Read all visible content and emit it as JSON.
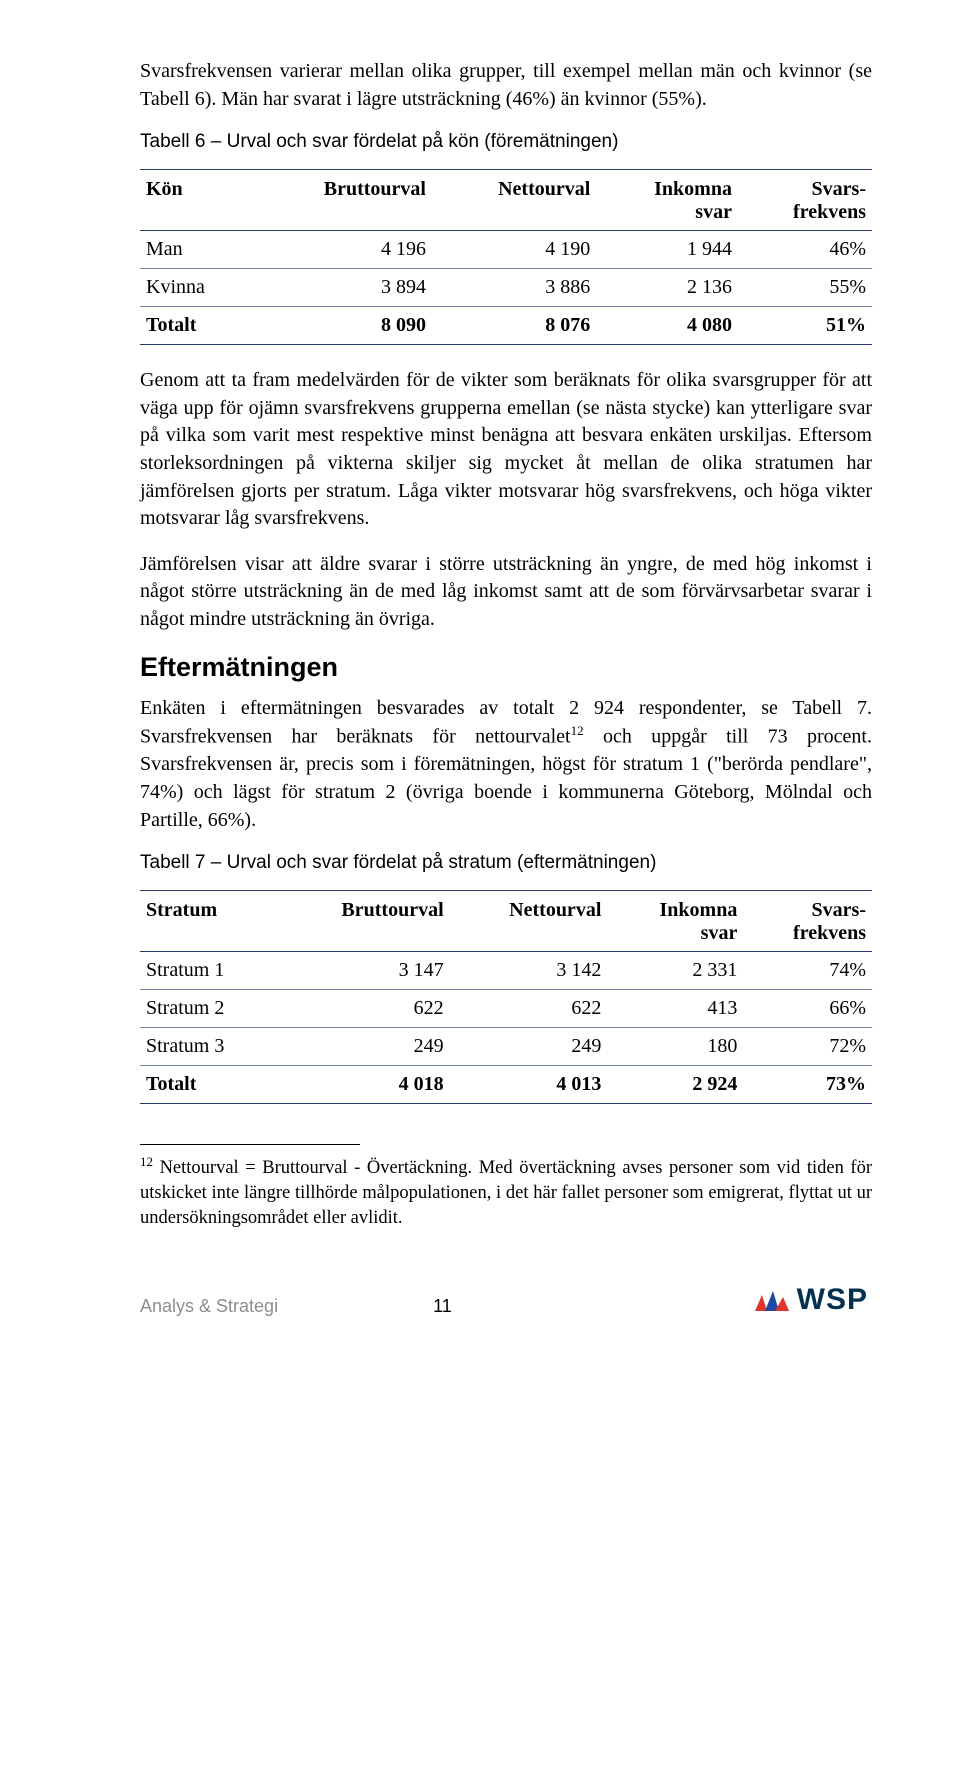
{
  "para1": "Svarsfrekvensen varierar mellan olika grupper, till exempel mellan män och kvinnor (se Tabell 6). Män har svarat i lägre utsträckning (46%) än kvinnor (55%).",
  "table6": {
    "caption": "Tabell 6 – Urval och svar fördelat på kön (föremätningen)",
    "headers": [
      "Kön",
      "Bruttourval",
      "Nettourval",
      "Inkomna svar",
      "Svars-frekvens"
    ],
    "rows": [
      [
        "Man",
        "4 196",
        "4 190",
        "1 944",
        "46%"
      ],
      [
        "Kvinna",
        "3 894",
        "3 886",
        "2 136",
        "55%"
      ]
    ],
    "total": [
      "Totalt",
      "8 090",
      "8 076",
      "4 080",
      "51%"
    ]
  },
  "para2": "Genom att ta fram medelvärden för de vikter som beräknats för olika svarsgrupper för att väga upp för ojämn svarsfrekvens grupperna emellan (se nästa stycke) kan ytterligare svar på vilka som varit mest respektive minst benägna att besvara enkäten urskiljas. Eftersom storleksordningen på vikterna skiljer sig mycket åt mellan de olika stratumen har jämförelsen gjorts per stratum. Låga vikter motsvarar hög svarsfrekvens, och höga vikter motsvarar låg svarsfrekvens.",
  "para3": "Jämförelsen visar att äldre svarar i större utsträckning än yngre, de med hög inkomst i något större utsträckning än de med låg inkomst samt att de som förvärvsarbetar svarar i något mindre utsträckning än övriga.",
  "heading": "Eftermätningen",
  "para4a": "Enkäten i eftermätningen besvarades av totalt 2 924 respondenter, se Tabell 7. Svarsfrekvensen har beräknats för nettourvalet",
  "para4sup": "12",
  "para4b": " och uppgår till 73 procent. Svarsfrekvensen är, precis som i föremätningen, högst för stratum 1 (\"berörda pendlare\", 74%) och lägst för stratum 2 (övriga boende i kommunerna Göteborg, Mölndal och Partille, 66%).",
  "table7": {
    "caption": "Tabell 7 – Urval och svar fördelat på stratum (eftermätningen)",
    "headers": [
      "Stratum",
      "Bruttourval",
      "Nettourval",
      "Inkomna svar",
      "Svars-frekvens"
    ],
    "rows": [
      [
        "Stratum 1",
        "3 147",
        "3 142",
        "2 331",
        "74%"
      ],
      [
        "Stratum 2",
        "622",
        "622",
        "413",
        "66%"
      ],
      [
        "Stratum 3",
        "249",
        "249",
        "180",
        "72%"
      ]
    ],
    "total": [
      "Totalt",
      "4 018",
      "4 013",
      "2 924",
      "73%"
    ]
  },
  "footnote": {
    "num": "12",
    "text": " Nettourval = Bruttourval - Övertäckning. Med övertäckning avses personer som vid tiden för utskicket inte längre tillhörde målpopulationen, i det här fallet personer som emigrerat, flyttat ut ur undersökningsområdet eller avlidit."
  },
  "footer": {
    "brand": "Analys & Strategi",
    "page": "11",
    "logo": "WSP"
  },
  "colors": {
    "rule": "#2a3a6a",
    "brandText": "#03304f",
    "logoRed": "#e0352f",
    "logoBlue": "#1f4aa0"
  }
}
